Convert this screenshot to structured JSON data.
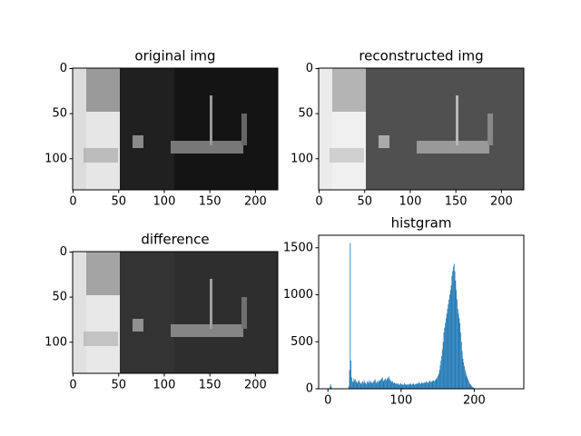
{
  "chart_data": [
    {
      "type": "image",
      "title": "original img",
      "xlim": [
        -0.5,
        224.5
      ],
      "ylim": [
        134.5,
        -0.5
      ],
      "xticks": [
        0,
        50,
        100,
        150,
        200
      ],
      "yticks": [
        0,
        50,
        100
      ]
    },
    {
      "type": "image",
      "title": "reconstructed img",
      "xlim": [
        -0.5,
        224.5
      ],
      "ylim": [
        134.5,
        -0.5
      ],
      "xticks": [
        0,
        50,
        100,
        150,
        200
      ],
      "yticks": [
        0,
        50,
        100
      ]
    },
    {
      "type": "image",
      "title": "difference",
      "xlim": [
        -0.5,
        224.5
      ],
      "ylim": [
        134.5,
        -0.5
      ],
      "xticks": [
        0,
        50,
        100,
        150,
        200
      ],
      "yticks": [
        0,
        50,
        100
      ]
    },
    {
      "type": "histogram",
      "title": "histgram",
      "color": "#1f77b4",
      "xlim": [
        -12.75,
        267.75
      ],
      "ylim": [
        0,
        1633
      ],
      "xticks": [
        0,
        100,
        200
      ],
      "yticks": [
        0,
        500,
        1000,
        1500
      ],
      "bins": [
        0,
        1,
        2,
        3,
        4,
        5,
        6,
        7,
        8,
        9,
        10,
        11,
        12,
        13,
        14,
        15,
        16,
        17,
        18,
        19,
        20,
        21,
        22,
        23,
        24,
        25,
        26,
        27,
        28,
        29,
        30,
        31,
        32,
        33,
        34,
        35,
        36,
        37,
        38,
        39,
        40,
        41,
        42,
        43,
        44,
        45,
        46,
        47,
        48,
        49,
        50,
        51,
        52,
        53,
        54,
        55,
        56,
        57,
        58,
        59,
        60,
        61,
        62,
        63,
        64,
        65,
        66,
        67,
        68,
        69,
        70,
        71,
        72,
        73,
        74,
        75,
        76,
        77,
        78,
        79,
        80,
        81,
        82,
        83,
        84,
        85,
        86,
        87,
        88,
        89,
        90,
        91,
        92,
        93,
        94,
        95,
        96,
        97,
        98,
        99,
        100,
        101,
        102,
        103,
        104,
        105,
        106,
        107,
        108,
        109,
        110,
        111,
        112,
        113,
        114,
        115,
        116,
        117,
        118,
        119,
        120,
        121,
        122,
        123,
        124,
        125,
        126,
        127,
        128,
        129,
        130,
        131,
        132,
        133,
        134,
        135,
        136,
        137,
        138,
        139,
        140,
        141,
        142,
        143,
        144,
        145,
        146,
        147,
        148,
        149,
        150,
        151,
        152,
        153,
        154,
        155,
        156,
        157,
        158,
        159,
        160,
        161,
        162,
        163,
        164,
        165,
        166,
        167,
        168,
        169,
        170,
        171,
        172,
        173,
        174,
        175,
        176,
        177,
        178,
        179,
        180,
        181,
        182,
        183,
        184,
        185,
        186,
        187,
        188,
        189,
        190,
        191,
        192,
        193,
        194,
        195,
        196,
        197,
        198,
        199,
        200,
        201,
        202,
        203,
        204,
        205,
        206,
        207,
        208,
        209,
        210,
        211,
        212,
        213,
        214,
        215,
        216,
        217,
        218,
        219,
        220,
        221,
        222,
        223,
        224,
        225,
        226,
        227,
        228,
        229,
        230,
        231,
        232,
        233,
        234,
        235,
        236,
        237,
        238,
        239,
        240,
        241,
        242,
        243,
        244,
        245,
        246,
        247,
        248,
        249,
        250,
        251,
        252,
        253,
        254,
        255,
        256
      ],
      "values": [
        0,
        0,
        20,
        50,
        30,
        5,
        0,
        0,
        0,
        0,
        0,
        0,
        0,
        0,
        0,
        0,
        0,
        0,
        0,
        0,
        0,
        0,
        0,
        0,
        0,
        0,
        2,
        5,
        30,
        200,
        1550,
        300,
        120,
        80,
        70,
        110,
        90,
        100,
        80,
        70,
        60,
        80,
        90,
        70,
        60,
        50,
        70,
        80,
        60,
        90,
        70,
        60,
        50,
        80,
        70,
        60,
        90,
        70,
        80,
        60,
        70,
        60,
        80,
        90,
        100,
        70,
        60,
        80,
        70,
        90,
        80,
        90,
        100,
        110,
        120,
        80,
        90,
        100,
        110,
        90,
        100,
        120,
        110,
        130,
        100,
        90,
        80,
        70,
        80,
        60,
        70,
        60,
        50,
        60,
        50,
        60,
        50,
        40,
        50,
        60,
        50,
        40,
        50,
        40,
        60,
        50,
        40,
        50,
        40,
        50,
        40,
        50,
        60,
        50,
        40,
        50,
        60,
        50,
        40,
        50,
        50,
        60,
        50,
        60,
        70,
        60,
        50,
        60,
        70,
        60,
        60,
        70,
        60,
        70,
        80,
        70,
        60,
        70,
        80,
        90,
        70,
        75,
        80,
        85,
        90,
        80,
        90,
        100,
        110,
        120,
        140,
        160,
        200,
        250,
        300,
        350,
        420,
        500,
        600,
        650,
        700,
        750,
        800,
        850,
        900,
        950,
        1000,
        1050,
        1100,
        1200,
        1250,
        1300,
        1330,
        1250,
        1150,
        1050,
        950,
        850,
        800,
        750,
        700,
        600,
        500,
        400,
        320,
        280,
        240,
        200,
        170,
        140,
        120,
        100,
        80,
        60,
        50,
        40,
        30,
        20,
        15,
        10,
        5,
        3,
        2,
        1,
        0,
        0,
        0,
        0,
        0,
        0,
        0,
        0,
        0,
        0,
        0,
        0,
        0,
        0,
        0,
        0,
        0,
        0,
        0,
        0,
        0,
        0,
        0,
        0,
        0,
        0,
        0,
        0,
        0,
        0,
        0,
        0,
        0,
        0,
        0,
        0,
        0,
        0,
        0,
        0,
        0,
        0,
        0,
        0,
        0,
        0,
        0,
        0,
        0,
        0,
        0,
        0
      ]
    }
  ]
}
